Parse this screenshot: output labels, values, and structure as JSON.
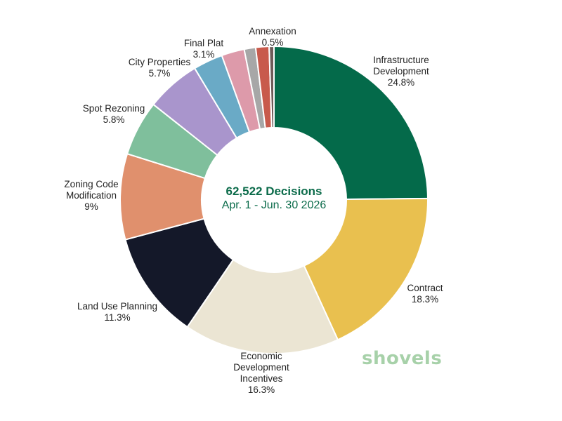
{
  "chart_data": {
    "type": "pie",
    "donut": true,
    "center": {
      "title": "62,522 Decisions",
      "subtitle": "Apr. 1 - Jun. 30 2026"
    },
    "slices": [
      {
        "label": "Infrastructure Development",
        "lines": [
          "Infrastructure",
          "Development"
        ],
        "value_label": "24.8%",
        "value": 24.8,
        "color": "#046a4a"
      },
      {
        "label": "Contract",
        "lines": [
          "Contract"
        ],
        "value_label": "18.3%",
        "value": 18.3,
        "color": "#e9c04f"
      },
      {
        "label": "Economic Development Incentives",
        "lines": [
          "Economic",
          "Development",
          "Incentives"
        ],
        "value_label": "16.3%",
        "value": 16.3,
        "color": "#ebe5d3"
      },
      {
        "label": "Land Use Planning",
        "lines": [
          "Land Use Planning"
        ],
        "value_label": "11.3%",
        "value": 11.3,
        "color": "#141829"
      },
      {
        "label": "Zoning Code Modification",
        "lines": [
          "Zoning Code",
          "Modification"
        ],
        "value_label": "9%",
        "value": 9,
        "color": "#e0906d"
      },
      {
        "label": "Spot Rezoning",
        "lines": [
          "Spot Rezoning"
        ],
        "value_label": "5.8%",
        "value": 5.8,
        "color": "#7fbf9c"
      },
      {
        "label": "City Properties",
        "lines": [
          "City Properties"
        ],
        "value_label": "5.7%",
        "value": 5.7,
        "color": "#a995cc"
      },
      {
        "label": "Final Plat",
        "lines": [
          "Final Plat"
        ],
        "value_label": "3.1%",
        "value": 3.1,
        "color": "#6aaac6"
      },
      {
        "label": "",
        "lines": [],
        "value_label": "",
        "value": 2.4,
        "color": "#dd9aaa"
      },
      {
        "label": "",
        "lines": [],
        "value_label": "",
        "value": 1.2,
        "color": "#a7a7a7"
      },
      {
        "label": "",
        "lines": [],
        "value_label": "",
        "value": 1.4,
        "color": "#c85a4c"
      },
      {
        "label": "Annexation",
        "lines": [
          "Annexation"
        ],
        "value_label": "0.5%",
        "value": 0.5,
        "color": "#6e5a58"
      }
    ]
  },
  "brand": {
    "logo_text": "shovels",
    "color": "#a7d1a9"
  }
}
